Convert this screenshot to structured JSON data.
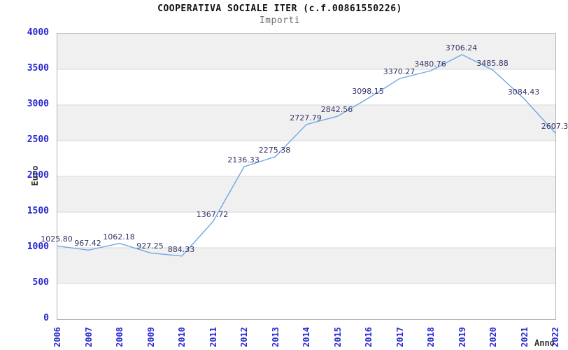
{
  "header": {
    "title": "COOPERATIVA SOCIALE ITER (c.f.00861550226)",
    "subtitle": "Importi"
  },
  "chart_data": {
    "type": "line",
    "title": "COOPERATIVA SOCIALE ITER (c.f.00861550226)",
    "subtitle": "Importi",
    "xlabel": "Anno",
    "ylabel": "Euro",
    "categories": [
      "2006",
      "2007",
      "2008",
      "2009",
      "2010",
      "2011",
      "2012",
      "2013",
      "2014",
      "2015",
      "2016",
      "2017",
      "2018",
      "2019",
      "2020",
      "2021",
      "2022"
    ],
    "values": [
      1025.8,
      967.42,
      1062.18,
      927.25,
      884.33,
      1367.72,
      2136.33,
      2275.38,
      2727.79,
      2842.56,
      3098.15,
      3370.27,
      3480.76,
      3706.24,
      3485.88,
      3084.43,
      2607.3
    ],
    "point_labels": [
      "1025.80",
      "967.42",
      "1062.18",
      "927.25",
      "884.33",
      "1367.72",
      "2136.33",
      "2275.38",
      "2727.79",
      "2842.56",
      "3098.15",
      "3370.27",
      "3480.76",
      "3706.24",
      "3485.88",
      "3084.43",
      "2607.3"
    ],
    "ylim": [
      0,
      4000
    ],
    "ytick_step": 500,
    "y_ticks": [
      "0",
      "500",
      "1000",
      "1500",
      "2000",
      "2500",
      "3000",
      "3500",
      "4000"
    ],
    "grid": true,
    "legend": "none",
    "banded_background": true,
    "colors": {
      "line": "#6fa8e4",
      "tick_label": "#2929cf",
      "point_label": "#333366",
      "band": "#f0f0f0",
      "grid_line": "#d9d9d9",
      "axis_title": "#333333",
      "title": "#111111",
      "subtitle": "#707070",
      "plot_border": "#b3b3b3"
    }
  }
}
